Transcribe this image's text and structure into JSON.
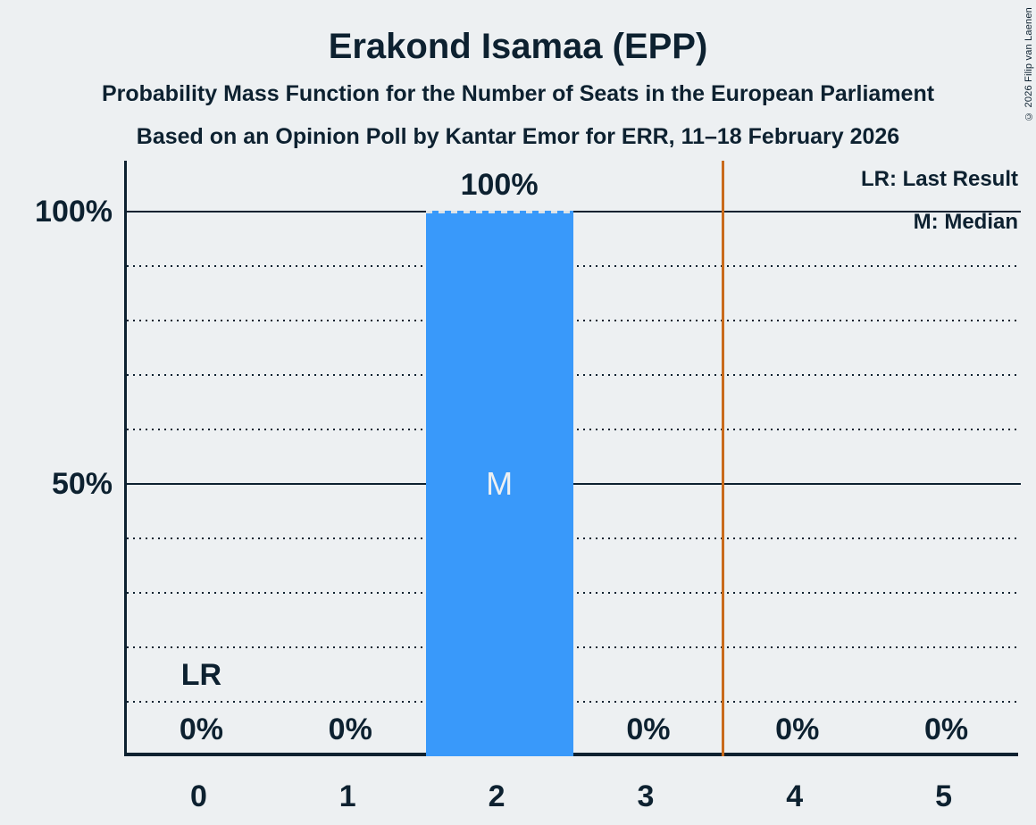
{
  "title": "Erakond Isamaa (EPP)",
  "subtitle1": "Probability Mass Function for the Number of Seats in the European Parliament",
  "subtitle2": "Based on an Opinion Poll by Kantar Emor for ERR, 11–18 February 2026",
  "copyright": "© 2026 Filip van Laenen",
  "legend": {
    "lr": "LR: Last Result",
    "m": "M: Median"
  },
  "colors": {
    "background": "#edf0f2",
    "text": "#0d2130",
    "bar": "#3999fa",
    "last_result_line": "#c96b1c",
    "bar_label_text": "#edf0f2"
  },
  "chart_data": {
    "type": "bar",
    "title": "Erakond Isamaa (EPP)",
    "subtitle": "Probability Mass Function for the Number of Seats in the European Parliament",
    "categories": [
      "0",
      "1",
      "2",
      "3",
      "4",
      "5"
    ],
    "values": [
      0,
      0,
      100,
      0,
      0,
      0
    ],
    "value_labels": [
      "0%",
      "0%",
      "100%",
      "0%",
      "0%",
      "0%"
    ],
    "xlabel": "",
    "ylabel": "",
    "ylim": [
      0,
      109
    ],
    "grid_step_pct": 10,
    "grid": "dotted-horizontal",
    "y_ticks": [
      {
        "value": 100,
        "label": "100%"
      },
      {
        "value": 50,
        "label": "50%"
      }
    ],
    "median_category": "2",
    "median_marker": "M",
    "median_marker_value_pct": 50,
    "lr_marker": "LR",
    "lr_marker_category": "0",
    "lr_marker_value_pct": 15,
    "zero_label_value_pct": 5,
    "last_result_line_position": 3.5,
    "legend_position": "top-right"
  }
}
